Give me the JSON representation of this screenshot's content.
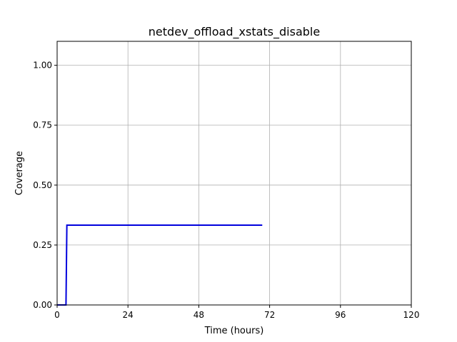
{
  "chart_data": {
    "type": "line",
    "title": "netdev_offload_xstats_disable",
    "xlabel": "Time (hours)",
    "ylabel": "Coverage",
    "xlim": [
      0,
      120
    ],
    "ylim": [
      0,
      1.1
    ],
    "xticks": [
      0,
      24,
      48,
      72,
      96,
      120
    ],
    "yticks": [
      0.0,
      0.25,
      0.5,
      0.75,
      1.0
    ],
    "xtick_labels": [
      "0",
      "24",
      "48",
      "72",
      "96",
      "120"
    ],
    "ytick_labels": [
      "0.00",
      "0.25",
      "0.50",
      "0.75",
      "1.00"
    ],
    "grid": true,
    "series": [
      {
        "color": "#0000dd",
        "x": [
          0,
          3.0,
          3.3,
          69.5
        ],
        "y": [
          0,
          0,
          0.333,
          0.333
        ]
      }
    ]
  }
}
